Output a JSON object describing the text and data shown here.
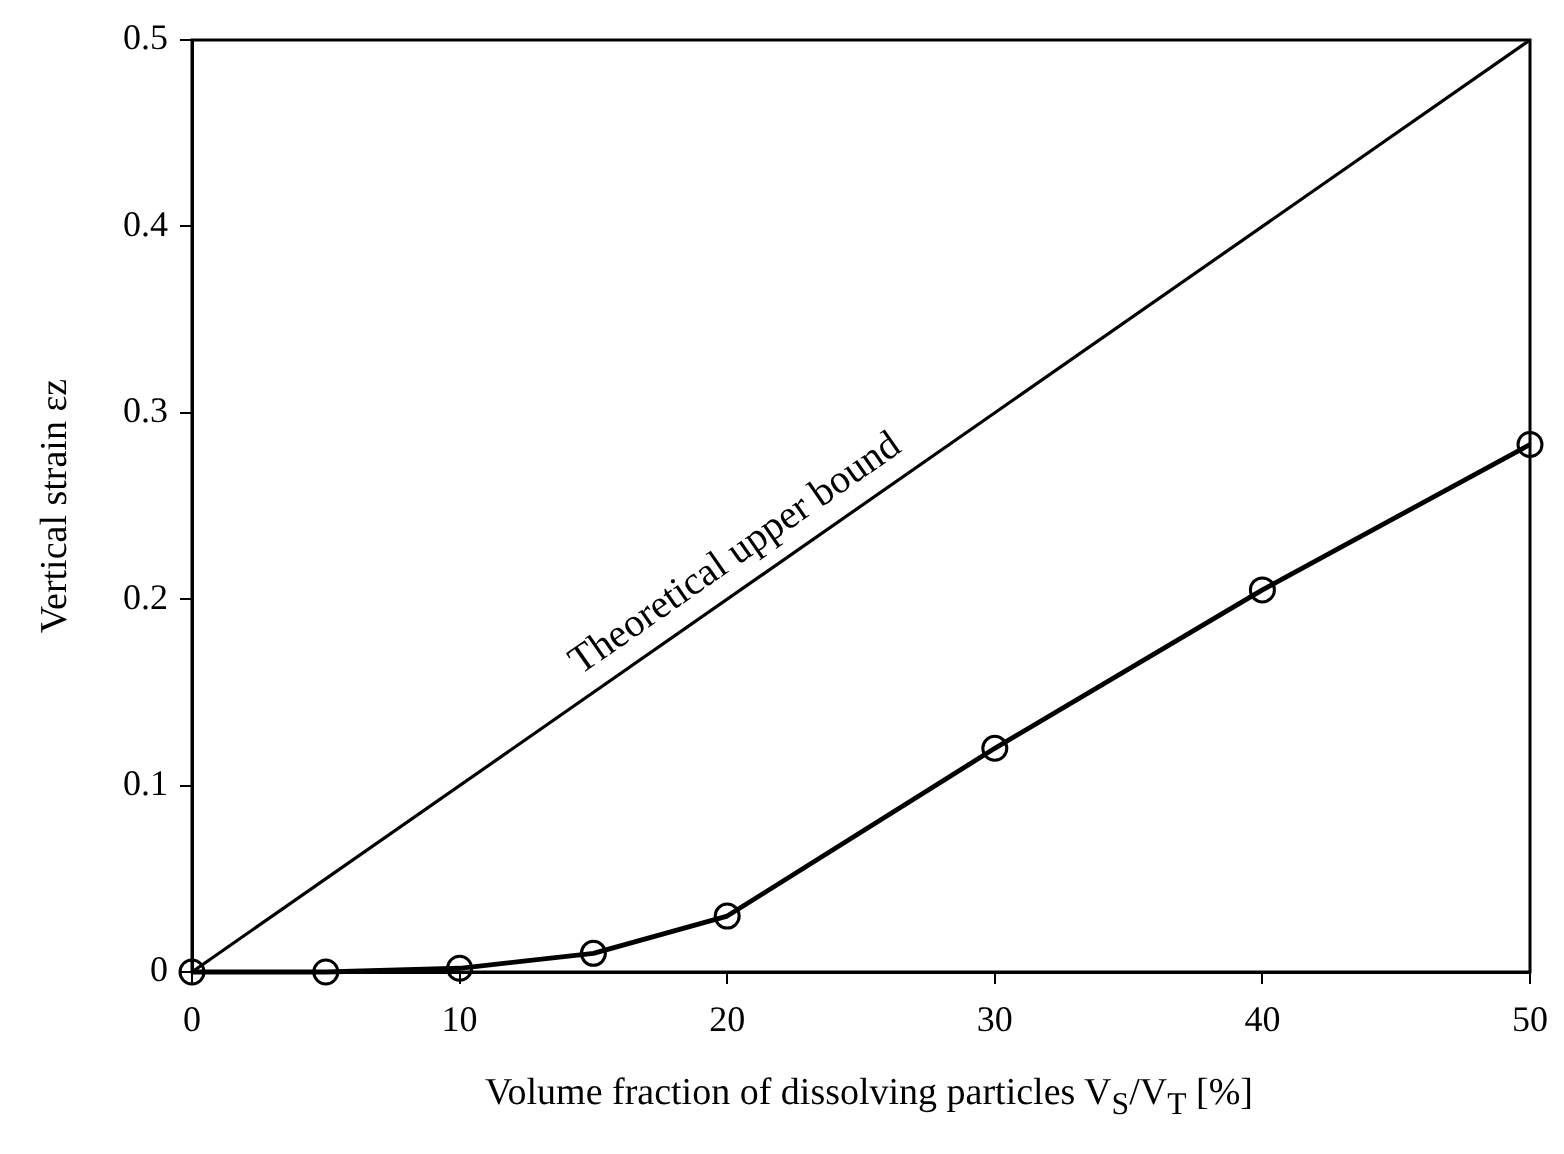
{
  "chart_data": {
    "type": "line",
    "xlabel": "Volume fraction of dissolving particles V$_{S}$/V$_{T}$ [%]",
    "ylabel": "Vertical strain εz",
    "x": [
      0,
      5,
      10,
      15,
      20,
      30,
      40,
      50
    ],
    "series": [
      {
        "name": "Theoretical upper bound",
        "color": "#000000",
        "x": [
          0,
          50
        ],
        "values": [
          0,
          0.5
        ]
      },
      {
        "color": "#000000",
        "values": [
          0,
          0,
          0.002,
          0.01,
          0.03,
          0.12,
          0.205,
          0.283
        ],
        "marker": "circle"
      }
    ],
    "xlim": [
      0,
      50
    ],
    "xticks": [
      0,
      10,
      20,
      30,
      40,
      50
    ],
    "ylim": [
      0,
      0.5
    ],
    "yticks": [
      0,
      0.1,
      0.2,
      0.3,
      0.4,
      0.5
    ],
    "grid": false,
    "legend": false,
    "line_style": "solid"
  }
}
